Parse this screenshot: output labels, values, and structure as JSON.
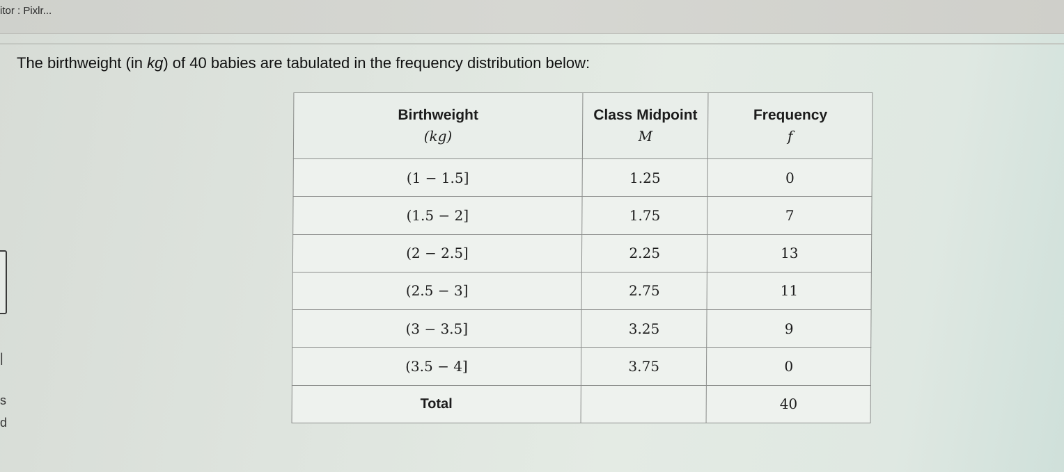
{
  "window": {
    "title": "itor : Pixlr..."
  },
  "question": {
    "before": "The birthweight (in ",
    "unit": "kg",
    "after": ") of 40 babies are tabulated in the frequency distribution below:"
  },
  "table": {
    "headers": [
      {
        "label": "Birthweight",
        "sub": "(kg)"
      },
      {
        "label": "Class Midpoint",
        "sub": "M"
      },
      {
        "label": "Frequency",
        "sub": "f"
      }
    ],
    "rows": [
      {
        "interval": "(1 − 1.5]",
        "midpoint": "1.25",
        "frequency": "0"
      },
      {
        "interval": "(1.5 − 2]",
        "midpoint": "1.75",
        "frequency": "7"
      },
      {
        "interval": "(2 − 2.5]",
        "midpoint": "2.25",
        "frequency": "13"
      },
      {
        "interval": "(2.5 − 3]",
        "midpoint": "2.75",
        "frequency": "11"
      },
      {
        "interval": "(3 − 3.5]",
        "midpoint": "3.25",
        "frequency": "9"
      },
      {
        "interval": "(3.5 − 4]",
        "midpoint": "3.75",
        "frequency": "0"
      }
    ],
    "total": {
      "label": "Total",
      "midpoint": "",
      "frequency": "40"
    }
  }
}
